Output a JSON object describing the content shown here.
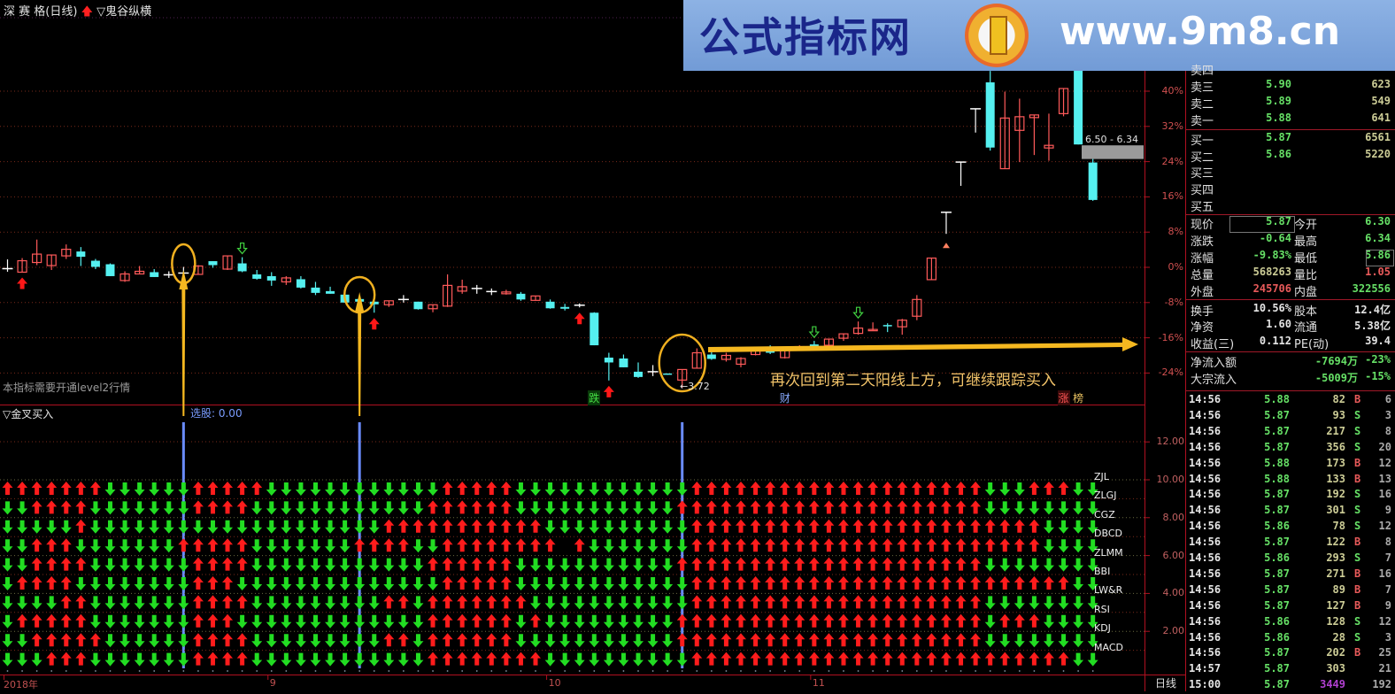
{
  "header": {
    "title": "深 赛 格(日线)",
    "indicator": "▽鬼谷纵横"
  },
  "banner": {
    "name": "公式指标网",
    "url": "www.9m8.cn"
  },
  "main": {
    "notice": "本指标需要开通level2行情",
    "gap_label": "6.50 - 6.34",
    "price_tag": "←3.72",
    "annotation": "再次回到第二天阳线上方，可继续跟踪买入",
    "event_labels": [
      {
        "text": "跌",
        "bar": 40,
        "color": "#44dd44"
      },
      {
        "text": "财",
        "bar": 53,
        "color": "#88aaff"
      },
      {
        "text": "涨",
        "bar": 72,
        "color": "#ff5555"
      },
      {
        "text": "榜",
        "bar": 73,
        "color": "#e8c060"
      }
    ],
    "y_axis": [
      "40%",
      "32%",
      "24%",
      "16%",
      "8%",
      "0%",
      "-8%",
      "-16%",
      "-24%"
    ]
  },
  "chart_data": {
    "type": "candlestick",
    "y_unit": "%",
    "ylim": [
      -28,
      50
    ],
    "y_ticks": [
      40,
      32,
      24,
      16,
      8,
      0,
      -8,
      -16,
      -24
    ],
    "grid": true,
    "colors": {
      "up": "#ff5a5a",
      "down": "#55f0f0",
      "flat": "#ffffff"
    },
    "ohlc": [
      [
        -0.3,
        1.8,
        -1.0,
        -0.3
      ],
      [
        -1.1,
        2.1,
        -1.1,
        1.5
      ],
      [
        1.1,
        6.3,
        0.5,
        3.0
      ],
      [
        0.4,
        2.8,
        -0.6,
        2.8
      ],
      [
        2.6,
        5.2,
        1.9,
        4.1
      ],
      [
        3.6,
        4.6,
        0.3,
        2.4
      ],
      [
        1.5,
        1.9,
        -0.4,
        0.1
      ],
      [
        0.7,
        0.9,
        -2.0,
        -2.0
      ],
      [
        -3.0,
        -0.9,
        -3.3,
        -1.5
      ],
      [
        -1.5,
        0.3,
        -1.6,
        -0.9
      ],
      [
        -1.1,
        -0.4,
        -2.2,
        -2.2
      ],
      [
        -1.7,
        -0.9,
        -2.4,
        -1.7
      ],
      [
        -1.3,
        0.1,
        -2.2,
        -1.3
      ],
      [
        -1.6,
        0.5,
        -1.6,
        0.3
      ],
      [
        1.4,
        1.4,
        -0.1,
        0.5
      ],
      [
        -0.4,
        2.6,
        -0.6,
        2.6
      ],
      [
        0.9,
        2.3,
        -1.1,
        -0.9
      ],
      [
        -1.6,
        -0.6,
        -2.8,
        -2.6
      ],
      [
        -2.0,
        -1.1,
        -4.2,
        -3.0
      ],
      [
        -3.3,
        -2.0,
        -4.0,
        -2.4
      ],
      [
        -2.7,
        -2.0,
        -4.8,
        -4.6
      ],
      [
        -4.6,
        -3.3,
        -6.3,
        -5.8
      ],
      [
        -5.4,
        -4.4,
        -6.0,
        -6.0
      ],
      [
        -6.2,
        -6.2,
        -8.0,
        -8.0
      ],
      [
        -7.2,
        -6.6,
        -8.4,
        -7.8
      ],
      [
        -7.8,
        -6.0,
        -10.3,
        -8.4
      ],
      [
        -8.5,
        -7.6,
        -9.0,
        -7.6
      ],
      [
        -7.3,
        -6.3,
        -8.0,
        -7.3
      ],
      [
        -7.8,
        -7.8,
        -9.6,
        -9.5
      ],
      [
        -9.4,
        -8.5,
        -10.2,
        -8.5
      ],
      [
        -8.8,
        -1.6,
        -9.0,
        -4.1
      ],
      [
        -5.4,
        -2.8,
        -6.0,
        -4.4
      ],
      [
        -4.8,
        -4.0,
        -6.0,
        -4.8
      ],
      [
        -5.5,
        -4.8,
        -6.3,
        -5.5
      ],
      [
        -6.0,
        -5.1,
        -6.2,
        -5.6
      ],
      [
        -6.0,
        -5.6,
        -7.6,
        -7.3
      ],
      [
        -7.5,
        -6.5,
        -7.5,
        -6.5
      ],
      [
        -7.8,
        -7.3,
        -9.4,
        -9.3
      ],
      [
        -9.0,
        -8.3,
        -9.8,
        -9.4
      ],
      [
        -8.6,
        -8.2,
        -9.1,
        -8.6
      ],
      [
        -10.3,
        -10.2,
        -17.7,
        -17.7
      ],
      [
        -20.5,
        -19.4,
        -25.7,
        -21.6
      ],
      [
        -20.7,
        -19.8,
        -22.7,
        -22.7
      ],
      [
        -23.7,
        -21.6,
        -25.1,
        -24.9
      ],
      [
        -23.7,
        -22.2,
        -24.7,
        -23.7
      ],
      [
        -24.1,
        -24.1,
        -24.4,
        -24.4
      ],
      [
        -25.6,
        -23.2,
        -27.4,
        -23.2
      ],
      [
        -22.9,
        -18.4,
        -22.9,
        -19.4
      ],
      [
        -19.8,
        -19.0,
        -21.0,
        -20.8
      ],
      [
        -20.9,
        -19.4,
        -21.4,
        -20.0
      ],
      [
        -22.0,
        -20.4,
        -22.7,
        -20.7
      ],
      [
        -19.8,
        -18.0,
        -20.0,
        -18.7
      ],
      [
        -18.2,
        -17.7,
        -19.7,
        -19.4
      ],
      [
        -20.5,
        -18.7,
        -20.7,
        -18.9
      ],
      [
        -18.5,
        -17.7,
        -18.7,
        -18.0
      ],
      [
        -17.5,
        -16.7,
        -18.4,
        -18.4
      ],
      [
        -17.7,
        -16.2,
        -17.7,
        -16.3
      ],
      [
        -16.1,
        -15.0,
        -16.7,
        -15.1
      ],
      [
        -15.0,
        -12.3,
        -15.3,
        -13.8
      ],
      [
        -14.3,
        -12.5,
        -14.3,
        -14.1
      ],
      [
        -13.1,
        -12.7,
        -14.7,
        -13.3
      ],
      [
        -13.5,
        -11.7,
        -15.3,
        -12.0
      ],
      [
        -11.1,
        -6.3,
        -12.0,
        -7.3
      ],
      [
        -2.8,
        2.1,
        -2.8,
        2.1
      ],
      [
        12.5,
        12.5,
        7.6,
        12.5
      ],
      [
        23.9,
        23.9,
        18.5,
        23.9
      ],
      [
        36.0,
        36.0,
        30.6,
        36.0
      ],
      [
        42.0,
        44.6,
        26.5,
        27.2
      ],
      [
        22.4,
        39.9,
        22.4,
        33.9
      ],
      [
        31.1,
        38.3,
        23.9,
        34.2
      ],
      [
        34.0,
        34.6,
        25.5,
        34.6
      ],
      [
        27.1,
        34.9,
        24.2,
        27.7
      ],
      [
        34.9,
        40.6,
        34.3,
        40.6
      ],
      [
        45.6,
        48.6,
        27.9,
        27.9
      ],
      [
        23.8,
        24.6,
        15.1,
        15.3
      ]
    ],
    "gap_zone": [
      24.6,
      27.7
    ],
    "buy_arrows": [
      1,
      25,
      39,
      41
    ],
    "sell_arrows": [
      16,
      55,
      58
    ],
    "limit_marker_bar": 64,
    "highlight_bars": [
      12,
      24,
      46
    ]
  },
  "lower": {
    "title": "▽金叉买入",
    "xuangu": "选股: 0.00",
    "y_axis": [
      "12.00",
      "10.00",
      "8.00",
      "6.00",
      "4.00",
      "2.00"
    ],
    "rows": [
      {
        "label": "ZJL",
        "signals": "UUUUUUU DDDDDD UUUUU DDDDDDDDDDDD UUUUU DDDDDDDDDDDD UUUUUUUUUUUUUUUUUUUU DDD UUU DD"
      },
      {
        "label": "ZLGJ",
        "signals": "DD UUUU DDDDDDD UUUU DDDDDDDDDDDD UUUUUU DDDDDDDDDDD UUUUUUUUUUUUUUUUUUUUU DDDDDDDD"
      },
      {
        "label": "CGZ",
        "signals": "DDDDD U DDDDDDDDDDDDDDDDDDDD UUUUUUUUUUU DDDDDDDDDD UUUUUUUUUUUUUUUUUUUUUUUU DDDD"
      },
      {
        "label": "DBCD",
        "signals": "DD UUU DDDDDDD UUUUU DDDDDDD UUUU DD UUUUUUUU _ U DDDDDDD UUUUUUUUUUUUUUUUUUUUUUUU DDDD"
      },
      {
        "label": "ZLMM",
        "signals": "DD UUUU DDDDDDD UUUU DDDDDDDDDDDD UUUUUU DDDDDDDDDDD UUUUUUUUUUUUUUUUUUUUU DDDDDDDD"
      },
      {
        "label": "BBI",
        "signals": "D UUUU DDDDDDDD UUU DDDDDDDDDDDDDD UUUUU DDDDDDDDDDDD UUUUUUUUUUUUUUUUUUUUUUUUUU DD"
      },
      {
        "label": "LW&R",
        "signals": "DDDD UU DDDDDDD UUUU DDDDDDDDD UU D UUUUUUU DDDDDDDDDDD UUUUUUUUUUUUUUUUUUUU DDDDDDDD"
      },
      {
        "label": "RSI",
        "signals": "D UUUUU DDDDDDD UUU DDDDDDDDDDDDD UUUUUU D U DDDDDDDDD UUUUUUUUUUUUUUUUUUUUU D UUU DDDD"
      },
      {
        "label": "KDJ",
        "signals": "DD UUUUU DDDDDD UUUU DDDDDDDDD UU D UUUUUU DDDDDDDDDDD UUUUUUUUUUUUUUUUUUUUU DDDDDDDD"
      },
      {
        "label": "MACD",
        "signals": "DDD UUU DDDDDDD UUUU DDDDDDDDDDDD UUUUUUUU DDDDDDDDDD UUUUUUUUUUUUUUUUUUUUUUUUUU DD"
      }
    ],
    "signal_bars": [
      12,
      24,
      46
    ]
  },
  "x_axis": {
    "labels": [
      {
        "text": "2018年",
        "bar": 0
      },
      {
        "text": "9",
        "bar": 18
      },
      {
        "text": "10",
        "bar": 37
      },
      {
        "text": "11",
        "bar": 55
      }
    ],
    "period": "日线"
  },
  "quote": {
    "book": [
      {
        "label": "卖四",
        "price": "",
        "vol": ""
      },
      {
        "label": "卖三",
        "price": "5.90",
        "vol": "623"
      },
      {
        "label": "卖二",
        "price": "5.89",
        "vol": "549"
      },
      {
        "label": "卖一",
        "price": "5.88",
        "vol": "641"
      },
      {
        "label": "买一",
        "price": "5.87",
        "vol": "6561"
      },
      {
        "label": "买二",
        "price": "5.86",
        "vol": "5220"
      },
      {
        "label": "买三",
        "price": "",
        "vol": ""
      },
      {
        "label": "买四",
        "price": "",
        "vol": ""
      },
      {
        "label": "买五",
        "price": "",
        "vol": ""
      }
    ],
    "stats": [
      {
        "l1": "现价",
        "v1": "5.87",
        "c1": "g",
        "l2": "今开",
        "v2": "6.30",
        "c2": "g"
      },
      {
        "l1": "涨跌",
        "v1": "-0.64",
        "c1": "g",
        "l2": "最高",
        "v2": "6.34",
        "c2": "g"
      },
      {
        "l1": "涨幅",
        "v1": "-9.83%",
        "c1": "g",
        "l2": "最低",
        "v2": "5.86",
        "c2": "g"
      },
      {
        "l1": "总量",
        "v1": "568263",
        "c1": "t",
        "l2": "量比",
        "v2": "1.05",
        "c2": "r"
      },
      {
        "l1": "外盘",
        "v1": "245706",
        "c1": "r",
        "l2": "内盘",
        "v2": "322556",
        "c2": "g"
      },
      {
        "l1": "换手",
        "v1": "10.56%",
        "c1": "w",
        "l2": "股本",
        "v2": "12.4亿",
        "c2": "w"
      },
      {
        "l1": "净资",
        "v1": "1.60",
        "c1": "w",
        "l2": "流通",
        "v2": "5.38亿",
        "c2": "w"
      },
      {
        "l1": "收益(三)",
        "v1": "0.112",
        "c1": "w",
        "l2": "PE(动)",
        "v2": "39.4",
        "c2": "w"
      }
    ],
    "flows": [
      {
        "label": "净流入额",
        "amount": "-7694万",
        "pct": "-23%"
      },
      {
        "label": "大宗流入",
        "amount": "-5009万",
        "pct": "-15%"
      }
    ]
  },
  "trades": [
    [
      "14:56",
      "5.88",
      "82",
      "B",
      "6"
    ],
    [
      "14:56",
      "5.87",
      "93",
      "S",
      "3"
    ],
    [
      "14:56",
      "5.87",
      "217",
      "S",
      "8"
    ],
    [
      "14:56",
      "5.87",
      "356",
      "S",
      "20"
    ],
    [
      "14:56",
      "5.88",
      "173",
      "B",
      "12"
    ],
    [
      "14:56",
      "5.88",
      "133",
      "B",
      "13"
    ],
    [
      "14:56",
      "5.87",
      "192",
      "S",
      "16"
    ],
    [
      "14:56",
      "5.87",
      "301",
      "S",
      "9"
    ],
    [
      "14:56",
      "5.86",
      "78",
      "S",
      "12"
    ],
    [
      "14:56",
      "5.87",
      "122",
      "B",
      "8"
    ],
    [
      "14:56",
      "5.86",
      "293",
      "S",
      "7"
    ],
    [
      "14:56",
      "5.87",
      "271",
      "B",
      "16"
    ],
    [
      "14:56",
      "5.87",
      "89",
      "B",
      "7"
    ],
    [
      "14:56",
      "5.87",
      "127",
      "B",
      "9"
    ],
    [
      "14:56",
      "5.86",
      "128",
      "S",
      "12"
    ],
    [
      "14:56",
      "5.86",
      "28",
      "S",
      "3"
    ],
    [
      "14:56",
      "5.87",
      "202",
      "B",
      "25"
    ],
    [
      "14:57",
      "5.87",
      "303",
      "",
      "21"
    ],
    [
      "15:00",
      "5.87",
      "3449",
      "",
      "192"
    ]
  ]
}
